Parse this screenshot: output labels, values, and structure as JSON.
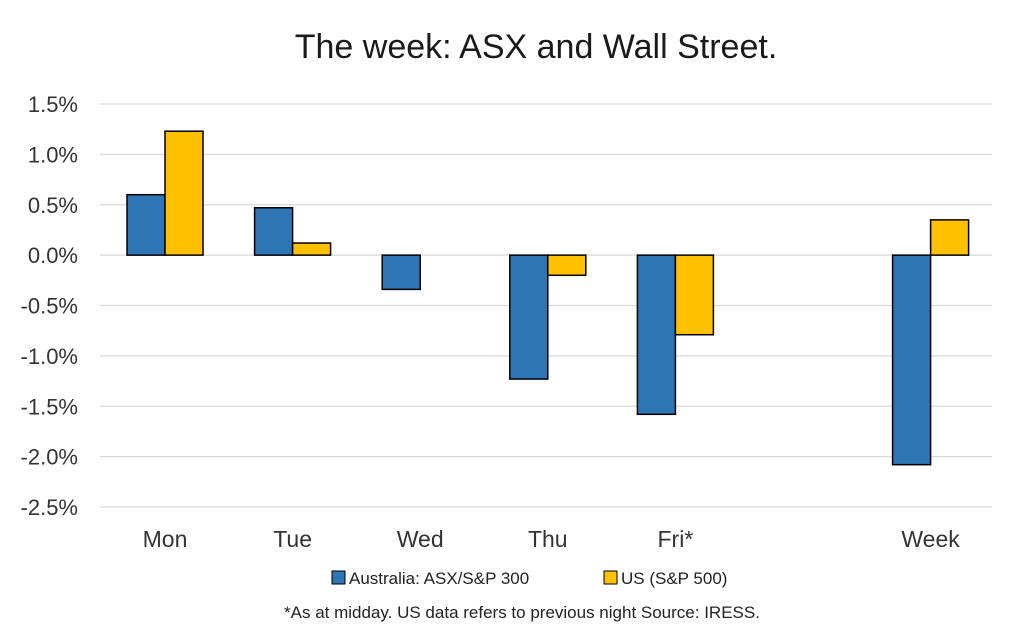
{
  "chart_data": {
    "type": "bar",
    "title": "The week:  ASX and Wall Street.",
    "xlabel": "",
    "ylabel": "",
    "categories": [
      "Mon",
      "Tue",
      "Wed",
      "Thu",
      "Fri*",
      "Week"
    ],
    "series": [
      {
        "name": "Australia: ASX/S&P 300",
        "color": "#2e75b6",
        "values": [
          0.6,
          0.47,
          -0.34,
          -1.23,
          -1.58,
          -2.08
        ]
      },
      {
        "name": "US (S&P 500)",
        "color": "#ffc000",
        "values": [
          1.23,
          0.12,
          null,
          -0.2,
          -0.79,
          0.35
        ]
      }
    ],
    "ylim": [
      -2.5,
      1.5
    ],
    "yticks": [
      1.5,
      1.0,
      0.5,
      0.0,
      -0.5,
      -1.0,
      -1.5,
      -2.0,
      -2.5
    ],
    "ytick_labels": [
      "1.5%",
      "1.0%",
      "0.5%",
      "0.0%",
      "-0.5%",
      "-1.0%",
      "-1.5%",
      "-2.0%",
      "-2.5%"
    ],
    "grid": true,
    "legend_position": "bottom",
    "footnote": "*As at midday. US data refers to previous night  Source:  IRESS."
  }
}
